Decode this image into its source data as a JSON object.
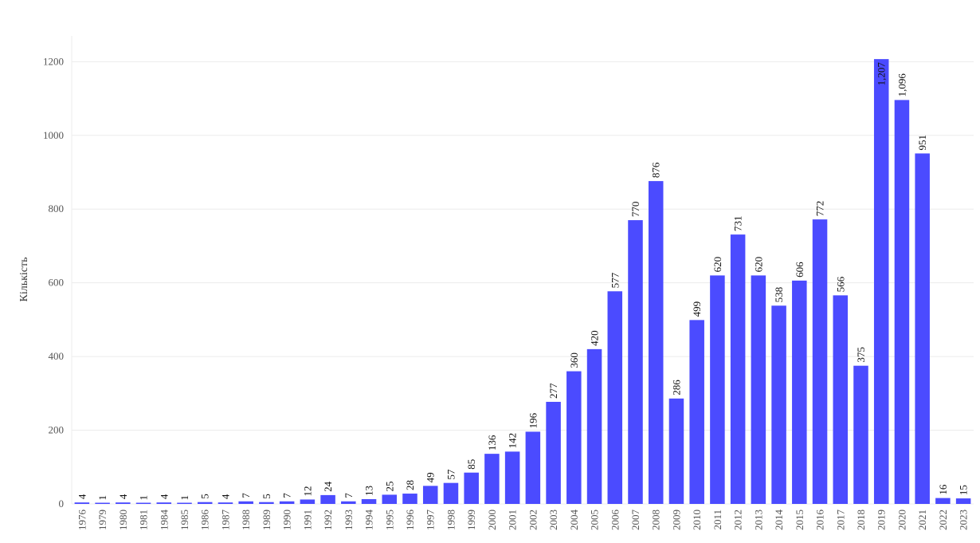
{
  "chart_data": {
    "type": "bar",
    "title": "",
    "xlabel": "",
    "ylabel": "Кількість",
    "ylim": [
      0,
      1270
    ],
    "yticks": [
      0,
      200,
      400,
      600,
      800,
      1000,
      1200
    ],
    "grid": true,
    "legend": "none",
    "bar_color": "#4b4bff",
    "categories": [
      "1976",
      "1979",
      "1980",
      "1981",
      "1984",
      "1985",
      "1986",
      "1987",
      "1988",
      "1989",
      "1990",
      "1991",
      "1992",
      "1993",
      "1994",
      "1995",
      "1996",
      "1997",
      "1998",
      "1999",
      "2000",
      "2001",
      "2002",
      "2003",
      "2004",
      "2005",
      "2006",
      "2007",
      "2008",
      "2009",
      "2010",
      "2011",
      "2012",
      "2013",
      "2014",
      "2015",
      "2016",
      "2017",
      "2018",
      "2019",
      "2020",
      "2021",
      "2022",
      "2023"
    ],
    "values": [
      4,
      1,
      4,
      1,
      4,
      1,
      5,
      4,
      7,
      5,
      7,
      12,
      24,
      7,
      13,
      25,
      28,
      49,
      57,
      85,
      136,
      142,
      196,
      277,
      360,
      420,
      577,
      770,
      876,
      286,
      499,
      620,
      731,
      620,
      538,
      606,
      772,
      566,
      375,
      1207,
      1096,
      951,
      16,
      15
    ],
    "value_labels": [
      "4",
      "1",
      "4",
      "1",
      "4",
      "1",
      "5",
      "4",
      "7",
      "5",
      "7",
      "12",
      "24",
      "7",
      "13",
      "25",
      "28",
      "49",
      "57",
      "85",
      "136",
      "142",
      "196",
      "277",
      "360",
      "420",
      "577",
      "770",
      "876",
      "286",
      "499",
      "620",
      "731",
      "620",
      "538",
      "606",
      "772",
      "566",
      "375",
      "1,207",
      "1,096",
      "951",
      "16",
      "15"
    ]
  }
}
